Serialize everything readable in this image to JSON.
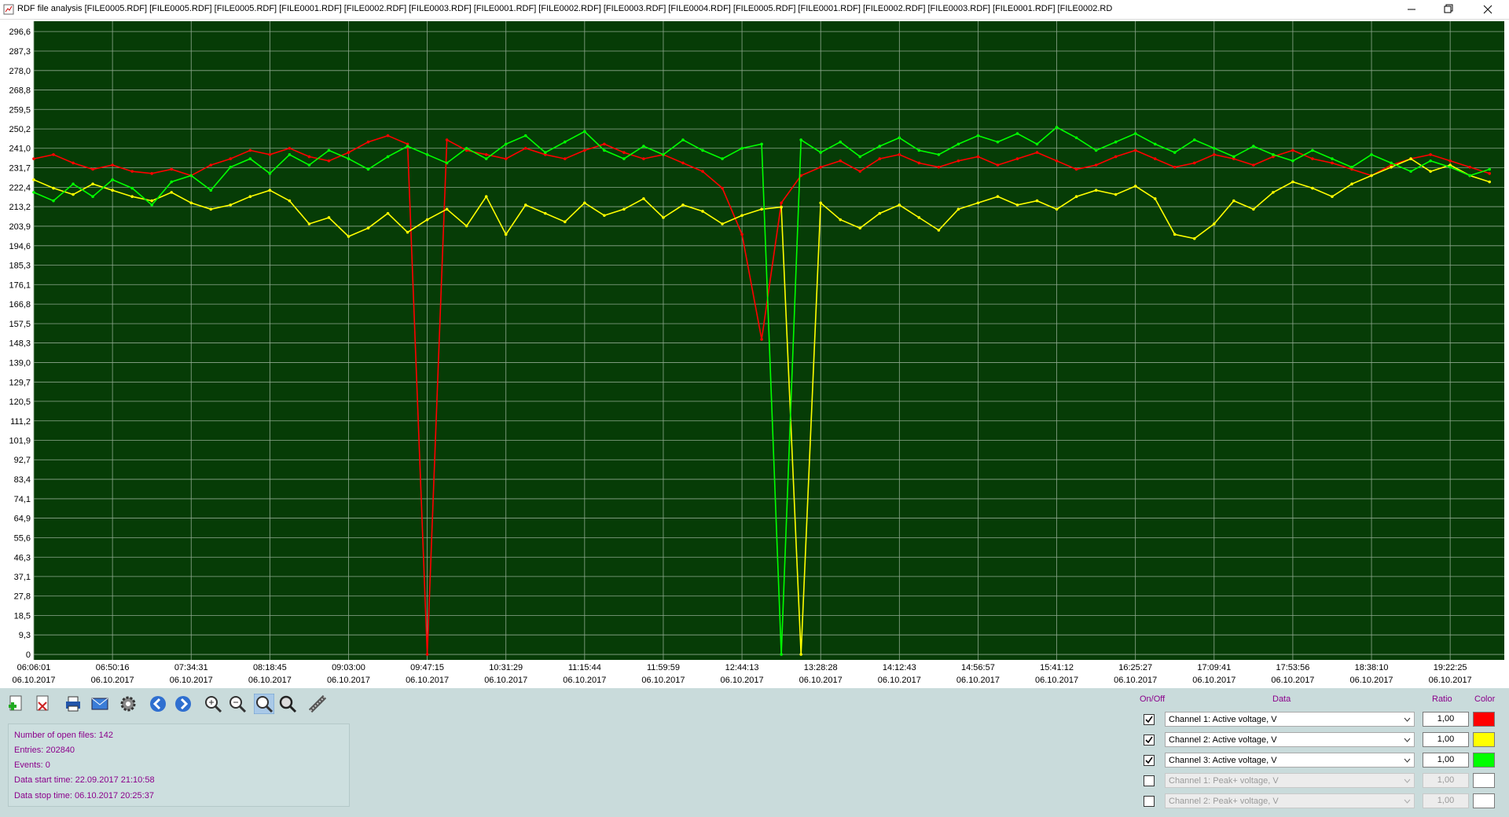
{
  "window": {
    "title": "RDF file analysis [FILE0005.RDF] [FILE0005.RDF] [FILE0005.RDF] [FILE0001.RDF] [FILE0002.RDF] [FILE0003.RDF] [FILE0001.RDF] [FILE0002.RDF] [FILE0003.RDF] [FILE0004.RDF] [FILE0005.RDF] [FILE0001.RDF] [FILE0002.RDF] [FILE0003.RDF] [FILE0001.RDF] [FILE0002.RD"
  },
  "chart_data": {
    "type": "line",
    "categories": [
      "06:06:01",
      null,
      null,
      null,
      "06:50:16",
      null,
      null,
      null,
      "07:34:31",
      null,
      null,
      null,
      "08:18:45",
      null,
      null,
      null,
      "09:03:00",
      null,
      null,
      null,
      "09:47:15",
      null,
      null,
      null,
      "10:31:29",
      null,
      null,
      null,
      "11:15:44",
      null,
      null,
      null,
      "11:59:59",
      null,
      null,
      null,
      "12:44:13",
      null,
      null,
      null,
      "13:28:28",
      null,
      null,
      null,
      "14:12:43",
      null,
      null,
      null,
      "14:56:57",
      null,
      null,
      null,
      "15:41:12",
      null,
      null,
      null,
      "16:25:27",
      null,
      null,
      null,
      "17:09:41",
      null,
      null,
      null,
      "17:53:56",
      null,
      null,
      null,
      "18:38:10",
      null,
      null,
      null,
      "19:22:25",
      null,
      null
    ],
    "category_dates": [
      "06.10.2017",
      null,
      null,
      null,
      "06.10.2017",
      null,
      null,
      null,
      "06.10.2017",
      null,
      null,
      null,
      "06.10.2017",
      null,
      null,
      null,
      "06.10.2017",
      null,
      null,
      null,
      "06.10.2017",
      null,
      null,
      null,
      "06.10.2017",
      null,
      null,
      null,
      "06.10.2017",
      null,
      null,
      null,
      "06.10.2017",
      null,
      null,
      null,
      "06.10.2017",
      null,
      null,
      null,
      "06.10.2017",
      null,
      null,
      null,
      "06.10.2017",
      null,
      null,
      null,
      "06.10.2017",
      null,
      null,
      null,
      "06.10.2017",
      null,
      null,
      null,
      "06.10.2017",
      null,
      null,
      null,
      "06.10.2017",
      null,
      null,
      null,
      "06.10.2017",
      null,
      null,
      null,
      "06.10.2017",
      null,
      null,
      null,
      "06.10.2017",
      null,
      null
    ],
    "series": [
      {
        "color": "#ff0000",
        "values": [
          236,
          238,
          234,
          231,
          233,
          230,
          229,
          231,
          228,
          233,
          236,
          240,
          238,
          241,
          237,
          235,
          239,
          244,
          247,
          243,
          0,
          245,
          240,
          238,
          236,
          241,
          238,
          236,
          240,
          243,
          239,
          236,
          238,
          234,
          230,
          222,
          200,
          150,
          215,
          228,
          232,
          235,
          230,
          236,
          238,
          234,
          232,
          235,
          237,
          233,
          236,
          239,
          235,
          231,
          233,
          237,
          240,
          236,
          232,
          234,
          238,
          236,
          233,
          237,
          240,
          236,
          234,
          231,
          228,
          233,
          236,
          238,
          235,
          232,
          229
        ]
      },
      {
        "color": "#ffff00",
        "values": [
          226,
          222,
          219,
          224,
          221,
          218,
          216,
          220,
          215,
          212,
          214,
          218,
          221,
          216,
          205,
          208,
          199,
          203,
          210,
          201,
          207,
          212,
          204,
          218,
          200,
          214,
          210,
          206,
          215,
          209,
          212,
          217,
          208,
          214,
          211,
          205,
          209,
          212,
          213,
          0,
          215,
          207,
          203,
          210,
          214,
          208,
          202,
          212,
          215,
          218,
          214,
          216,
          212,
          218,
          221,
          219,
          223,
          217,
          200,
          198,
          205,
          216,
          212,
          220,
          225,
          222,
          218,
          224,
          228,
          232,
          236,
          230,
          233,
          228,
          225
        ]
      },
      {
        "color": "#00ff00",
        "values": [
          220,
          216,
          224,
          218,
          226,
          222,
          214,
          225,
          228,
          221,
          232,
          236,
          229,
          238,
          233,
          240,
          236,
          231,
          237,
          242,
          238,
          234,
          241,
          236,
          243,
          247,
          239,
          244,
          249,
          240,
          236,
          242,
          238,
          245,
          240,
          236,
          241,
          243,
          0,
          245,
          239,
          244,
          237,
          242,
          246,
          240,
          238,
          243,
          247,
          244,
          248,
          243,
          251,
          246,
          240,
          244,
          248,
          243,
          239,
          245,
          241,
          237,
          242,
          238,
          235,
          240,
          236,
          232,
          238,
          234,
          230,
          235,
          232,
          228,
          231
        ]
      }
    ],
    "ylim": [
      -2.6,
      301.5
    ],
    "yticks": [
      {
        "value": 296.6,
        "label": "296,6"
      },
      {
        "value": 287.3,
        "label": "287,3"
      },
      {
        "value": 278.0,
        "label": "278,0"
      },
      {
        "value": 268.8,
        "label": "268,8"
      },
      {
        "value": 259.5,
        "label": "259,5"
      },
      {
        "value": 250.2,
        "label": "250,2"
      },
      {
        "value": 241.0,
        "label": "241,0"
      },
      {
        "value": 231.7,
        "label": "231,7"
      },
      {
        "value": 222.4,
        "label": "222,4"
      },
      {
        "value": 213.2,
        "label": "213,2"
      },
      {
        "value": 203.9,
        "label": "203,9"
      },
      {
        "value": 194.6,
        "label": "194,6"
      },
      {
        "value": 185.3,
        "label": "185,3"
      },
      {
        "value": 176.1,
        "label": "176,1"
      },
      {
        "value": 166.8,
        "label": "166,8"
      },
      {
        "value": 157.5,
        "label": "157,5"
      },
      {
        "value": 148.3,
        "label": "148,3"
      },
      {
        "value": 139.0,
        "label": "139,0"
      },
      {
        "value": 129.7,
        "label": "129,7"
      },
      {
        "value": 120.5,
        "label": "120,5"
      },
      {
        "value": 111.2,
        "label": "111,2"
      },
      {
        "value": 101.9,
        "label": "101,9"
      },
      {
        "value": 92.7,
        "label": "92,7"
      },
      {
        "value": 83.4,
        "label": "83,4"
      },
      {
        "value": 74.1,
        "label": "74,1"
      },
      {
        "value": 64.9,
        "label": "64,9"
      },
      {
        "value": 55.6,
        "label": "55,6"
      },
      {
        "value": 46.3,
        "label": "46,3"
      },
      {
        "value": 37.1,
        "label": "37,1"
      },
      {
        "value": 27.8,
        "label": "27,8"
      },
      {
        "value": 18.5,
        "label": "18,5"
      },
      {
        "value": 9.3,
        "label": "9,3"
      },
      0
    ],
    "grid": true,
    "background": "#063c06",
    "grid_color": "#8fa88f"
  },
  "info": [
    "Number of open files: 142",
    "Entries: 202840",
    "Events: 0",
    "Data start time: 22.09.2017 21:10:58",
    "Data stop time: 06.10.2017 20:25:37"
  ],
  "channels": {
    "headers": [
      "On/Off",
      "Data",
      "Ratio",
      "Color"
    ],
    "rows": [
      {
        "checked": true,
        "enabled": true,
        "data": "Channel 1: Active voltage, V",
        "ratio": "1,00",
        "color": "#ff0000"
      },
      {
        "checked": true,
        "enabled": true,
        "data": "Channel 2: Active voltage, V",
        "ratio": "1,00",
        "color": "#ffff00"
      },
      {
        "checked": true,
        "enabled": true,
        "data": "Channel 3: Active voltage, V",
        "ratio": "1,00",
        "color": "#00ff00"
      },
      {
        "checked": false,
        "enabled": false,
        "data": "Channel 1: Peak+ voltage, V",
        "ratio": "1,00",
        "color": "#ffffff"
      },
      {
        "checked": false,
        "enabled": false,
        "data": "Channel 2: Peak+ voltage, V",
        "ratio": "1,00",
        "color": "#ffffff"
      }
    ]
  }
}
